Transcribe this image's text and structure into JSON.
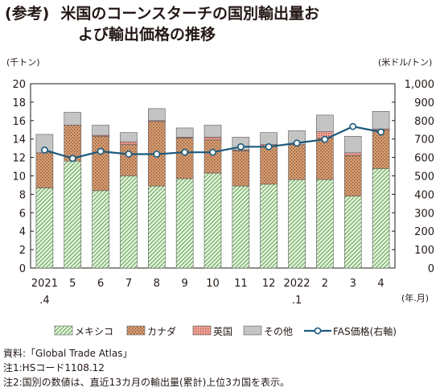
{
  "title": {
    "prefix": "(参考)",
    "line1": "米国のコーンスターチの国別輸出量お",
    "line2": "よび輸出価格の推移"
  },
  "chart_data": {
    "type": "bar",
    "stacked": true,
    "categories": [
      "2021\n.4",
      "5",
      "6",
      "7",
      "8",
      "9",
      "10",
      "11",
      "12",
      "2022\n.1",
      "2",
      "3",
      "4"
    ],
    "x_unit": "(年.月)",
    "y_left": {
      "unit": "(千トン)",
      "range": [
        0,
        20
      ],
      "ticks": [
        0,
        2,
        4,
        6,
        8,
        10,
        12,
        14,
        16,
        18,
        20
      ]
    },
    "y_right": {
      "unit": "(米ドル/トン)",
      "range": [
        0,
        1000
      ],
      "ticks": [
        "0",
        "100",
        "200",
        "300",
        "400",
        "500",
        "600",
        "700",
        "800",
        "900",
        "1,000"
      ]
    },
    "series": [
      {
        "name": "メキシコ",
        "color": "#5ea84f",
        "values": [
          8.7,
          11.6,
          8.4,
          10.0,
          8.9,
          9.7,
          10.3,
          8.9,
          9.1,
          9.6,
          9.6,
          7.8,
          10.8
        ]
      },
      {
        "name": "カナダ",
        "color": "#b0683e",
        "values": [
          3.8,
          3.9,
          5.9,
          3.4,
          7.0,
          4.4,
          3.6,
          3.8,
          4.1,
          3.8,
          4.5,
          4.4,
          4.2
        ]
      },
      {
        "name": "英国",
        "color": "#c9473b",
        "values": [
          0.0,
          0.0,
          0.1,
          0.3,
          0.1,
          0.1,
          0.3,
          0.1,
          0.2,
          0.0,
          0.7,
          0.3,
          0.1
        ]
      },
      {
        "name": "その他",
        "color": "#bcbcbc",
        "values": [
          2.0,
          1.4,
          1.1,
          1.0,
          1.3,
          1.0,
          1.3,
          1.4,
          1.3,
          1.5,
          1.8,
          1.8,
          1.9
        ]
      }
    ],
    "line": {
      "name": "FAS価格(右軸)",
      "color": "#1c5a7c",
      "values": [
        640,
        595,
        633,
        618,
        618,
        628,
        628,
        658,
        658,
        678,
        698,
        768,
        738
      ]
    },
    "legend_placement": "bottom",
    "grid": false
  },
  "notes": [
    "資料:「Global Trade Atlas」",
    "注1:HSコード1108.12",
    "注2:国別の数値は、直近13カ月の輸出量(累計)上位3カ国を表示。"
  ]
}
